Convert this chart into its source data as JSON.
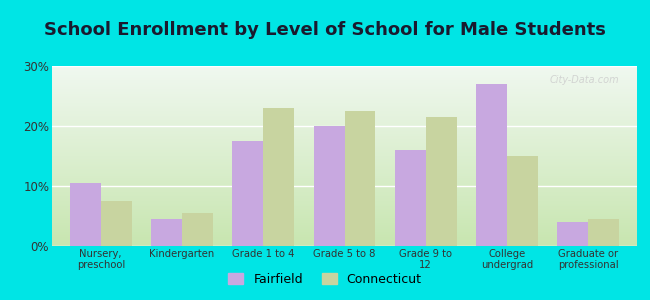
{
  "title": "School Enrollment by Level of School for Male Students",
  "categories": [
    "Nursery,\npreschool",
    "Kindergarten",
    "Grade 1 to 4",
    "Grade 5 to 8",
    "Grade 9 to\n12",
    "College\nundergrad",
    "Graduate or\nprofessional"
  ],
  "fairfield": [
    10.5,
    4.5,
    17.5,
    20.0,
    16.0,
    27.0,
    4.0
  ],
  "connecticut": [
    7.5,
    5.5,
    23.0,
    22.5,
    21.5,
    15.0,
    4.5
  ],
  "fairfield_color": "#c8a8e0",
  "connecticut_color": "#c8d4a0",
  "background_outer": "#00e5e5",
  "background_inner_bottom": "#c8e6b0",
  "background_inner_top": "#f0f8f0",
  "ylim": [
    0,
    30
  ],
  "yticks": [
    0,
    10,
    20,
    30
  ],
  "ytick_labels": [
    "0%",
    "10%",
    "20%",
    "30%"
  ],
  "legend_fairfield": "Fairfield",
  "legend_connecticut": "Connecticut",
  "title_fontsize": 13,
  "bar_width": 0.38,
  "grid_color": "#ffffff",
  "watermark": "City-Data.com",
  "title_color": "#1a1a2e"
}
